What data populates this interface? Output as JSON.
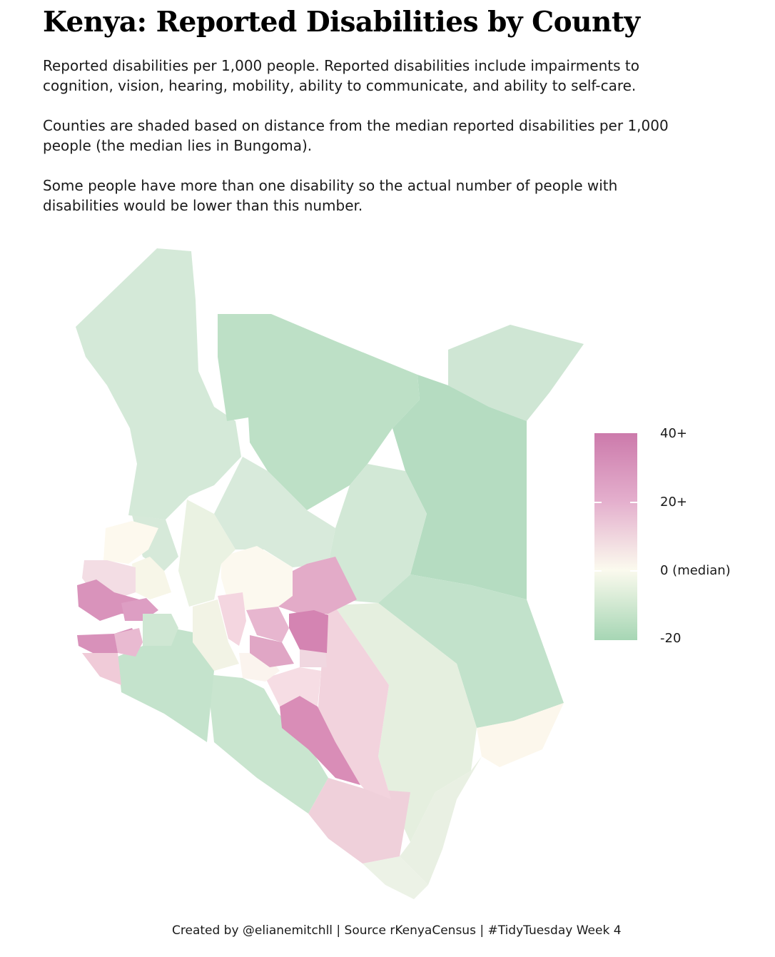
{
  "title": "Kenya: Reported Disabilities by County",
  "description": [
    "Reported disabilities per 1,000 people. Reported disabilities include impairments to cognition, vision, hearing, mobility, ability to communicate, and ability to self-care.",
    "Counties are shaded based on distance from the median reported disabilities per 1,000 people (the median lies in Bungoma).",
    "Some people have more than one disability so the actual number of people with disabilities would be lower than this number."
  ],
  "legend": {
    "labels": [
      "40+",
      "20+",
      "0 (median)",
      "-20"
    ],
    "colors": {
      "high": "#cc7aab",
      "mid_high": "#e4afcd",
      "median": "#fbfaee",
      "low": "#a6d6b4"
    }
  },
  "caption": "Created by @elianemitchll | Source rKenyaCensus | #TidyTuesday Week 4"
}
